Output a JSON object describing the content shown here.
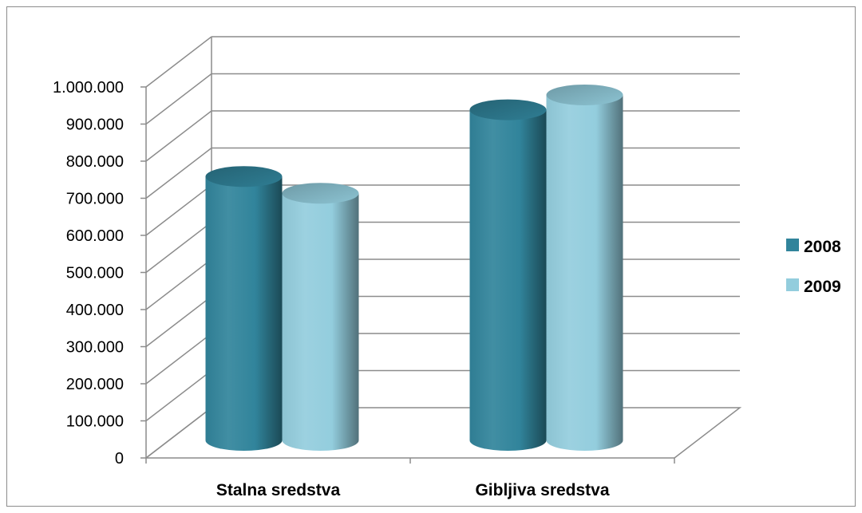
{
  "chart_data": {
    "type": "bar",
    "style": "3d-cylinder",
    "categories": [
      "Stalna sredstva",
      "Gibljiva sredstva"
    ],
    "series": [
      {
        "name": "2008",
        "values": [
          780000,
          960000
        ],
        "color": "#31849b"
      },
      {
        "name": "2009",
        "values": [
          735000,
          1000000
        ],
        "color": "#93cddd"
      }
    ],
    "y_ticks": [
      {
        "value": 0,
        "label": "0"
      },
      {
        "value": 100000,
        "label": "100.000"
      },
      {
        "value": 200000,
        "label": "200.000"
      },
      {
        "value": 300000,
        "label": "300.000"
      },
      {
        "value": 400000,
        "label": "400.000"
      },
      {
        "value": 500000,
        "label": "500.000"
      },
      {
        "value": 600000,
        "label": "600.000"
      },
      {
        "value": 700000,
        "label": "700.000"
      },
      {
        "value": 800000,
        "label": "800.000"
      },
      {
        "value": 900000,
        "label": "900.000"
      },
      {
        "value": 1000000,
        "label": "1.000.000"
      }
    ],
    "ylim": [
      0,
      1000000
    ],
    "grid": true,
    "legend_position": "right",
    "colors": {
      "gridline": "#8c8c8c",
      "frame": "#8c8c8c"
    }
  }
}
